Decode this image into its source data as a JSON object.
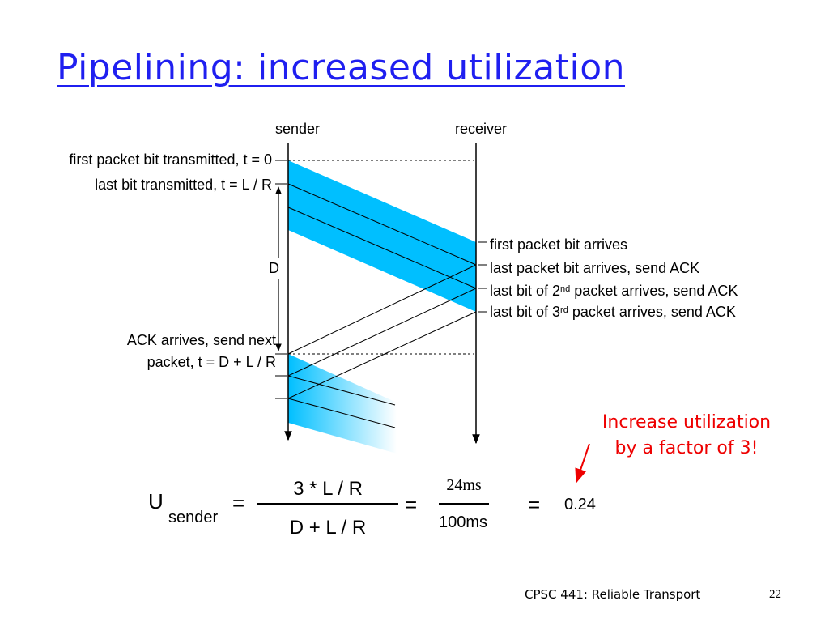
{
  "slide": {
    "title": "Pipelining: increased utilization",
    "footer": "CPSC 441: Reliable Transport",
    "page_number": "22"
  },
  "diagram": {
    "sender_label": "sender",
    "receiver_label": "receiver",
    "left_labels": {
      "first_bit_sent": "first packet bit transmitted, t = 0",
      "last_bit_sent": "last bit transmitted, t = L / R",
      "delay": "D",
      "ack_line1": "ACK arrives, send next",
      "ack_line2": "packet, t = D + L / R"
    },
    "right_labels": {
      "first_bit_arrives": "first packet bit arrives",
      "last_bit_arrives": "last packet bit arrives, send ACK",
      "second_pre": "last bit of 2",
      "second_sup": "nd",
      "second_post": " packet arrives, send ACK",
      "third_pre": "last bit of 3",
      "third_sup": "rd",
      "third_post": " packet arrives, send ACK"
    },
    "colors": {
      "packet": "#00bfff",
      "title": "#1f1ff0",
      "note": "#ee0000"
    }
  },
  "formula": {
    "U": "U",
    "subscript": "sender",
    "eq1": "=",
    "numerator": "3 * L / R",
    "denominator": "D + L / R",
    "eq2": "=",
    "num2": "24ms",
    "den2": "100ms",
    "eq3": "=",
    "result": "0.24"
  },
  "note": {
    "line1": "Increase utilization",
    "line2": "by a factor of 3!"
  }
}
